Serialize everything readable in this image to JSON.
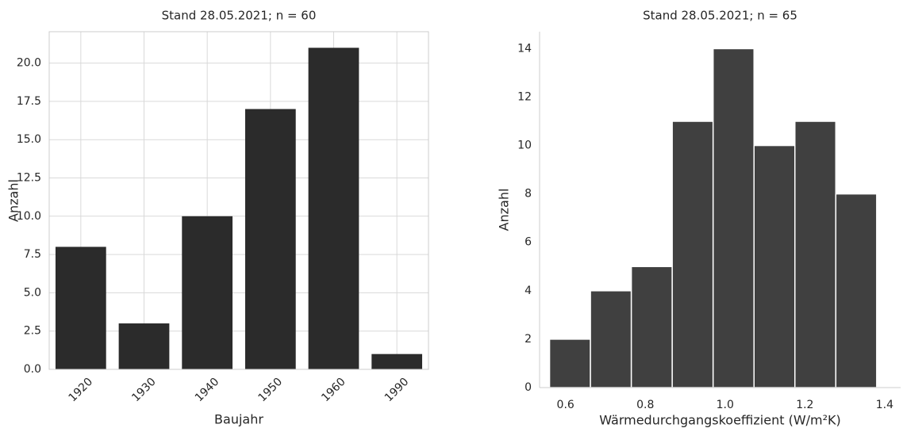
{
  "chart_data": [
    {
      "type": "bar",
      "title": "Stand 28.05.2021; n = 60",
      "xlabel": "Baujahr",
      "ylabel": "Anzahl",
      "categories": [
        "1920",
        "1930",
        "1940",
        "1950",
        "1960",
        "1990"
      ],
      "values": [
        8,
        3,
        10,
        17,
        21,
        1
      ],
      "color": "#2b2b2b",
      "ylim": [
        0,
        22.05
      ],
      "yticks": [
        {
          "value": 0,
          "label": "0.0"
        },
        2.5,
        {
          "value": 5,
          "label": "5.0"
        },
        7.5,
        {
          "value": 10,
          "label": "10.0"
        },
        12.5,
        {
          "value": 15,
          "label": "15.0"
        },
        17.5,
        {
          "value": 20,
          "label": "20.0"
        }
      ],
      "grid": true
    },
    {
      "type": "histogram",
      "title": "Stand 28.05.2021; n = 65",
      "xlabel": "Wärmedurchgangskoeffizient (W/m²K)",
      "ylabel": "Anzahl",
      "bins": [
        0.56,
        0.6625,
        0.765,
        0.8675,
        0.97,
        1.0725,
        1.175,
        1.2775,
        1.38
      ],
      "values": [
        2,
        4,
        5,
        11,
        14,
        10,
        11,
        8
      ],
      "color": "#404040",
      "xlim": [
        0.535,
        1.44
      ],
      "xticks": [
        0.6,
        0.8,
        {
          "value": 1,
          "label": "1.0"
        },
        1.2,
        1.4
      ],
      "ylim": [
        0,
        14.7
      ],
      "yticks": [
        0,
        2,
        4,
        6,
        8,
        10,
        12,
        14
      ],
      "grid": false
    }
  ]
}
